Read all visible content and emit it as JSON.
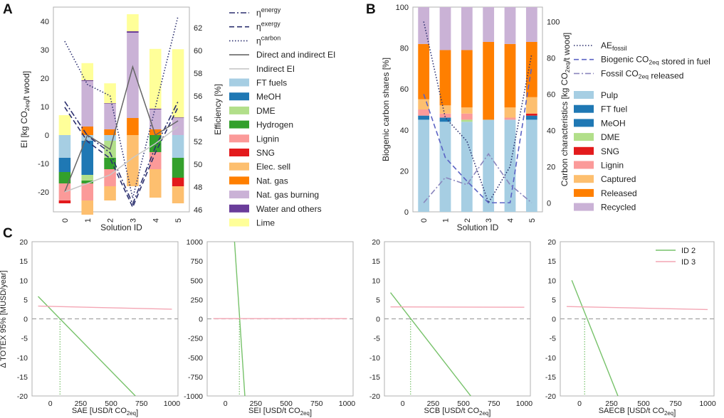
{
  "figure": {
    "background": "#ffffff"
  },
  "colors": {
    "FT fuels": "#a6cee3",
    "MeOH": "#1f78b4",
    "DME": "#b2df8a",
    "Hydrogen": "#33a02c",
    "Lignin": "#fb9a99",
    "SNG": "#e31a1c",
    "Elec. sell": "#fdbf6f",
    "Nat. gas": "#ff7f00",
    "Nat. gas burning": "#cab2d6",
    "Water and others": "#6a3d9a",
    "Lime": "#ffff99",
    "Pulp": "#a6cee3",
    "FT fuel": "#1f78b4",
    "Captured": "#fdbf6f",
    "Released": "#ff7f00",
    "Recycled": "#cab2d6",
    "eff_line": "#2b2f6e",
    "direct_ei": "#666666",
    "indirect_ei": "#c8c8c8",
    "id2": "#77c26a",
    "id3": "#f4a6b4",
    "zero": "#a3a3a3",
    "frame": "#b0b0b0"
  },
  "chart_data": [
    {
      "panel": "A",
      "type": "bar",
      "stacked": true,
      "xlabel": "Solution ID",
      "ylabel_left": "EI [kg CO₂eq/t  wood]",
      "ylabel_right": "Efficiency [%]",
      "categories": [
        "0",
        "1",
        "2",
        "3",
        "4",
        "5"
      ],
      "ylim": [
        -27,
        45
      ],
      "yticks": [
        -20,
        -10,
        0,
        10,
        20,
        30,
        40
      ],
      "y2lim": [
        45.8,
        63.8
      ],
      "y2ticks": [
        46,
        48,
        50,
        52,
        54,
        56,
        58,
        60,
        62
      ],
      "series": [
        {
          "name": "FT fuels",
          "values": [
            -8,
            -2,
            -2,
            0,
            0,
            -8
          ]
        },
        {
          "name": "MeOH",
          "values": [
            -5,
            -12,
            0,
            0,
            0,
            0
          ]
        },
        {
          "name": "DME",
          "values": [
            0,
            -2,
            -6,
            0,
            0,
            0
          ]
        },
        {
          "name": "Hydrogen",
          "values": [
            -4,
            -1,
            -4,
            0,
            -6,
            -7
          ]
        },
        {
          "name": "Lignin",
          "values": [
            -6,
            -6,
            -6,
            0,
            -6,
            0
          ]
        },
        {
          "name": "SNG",
          "values": [
            -1,
            0,
            0,
            0,
            0,
            -3
          ]
        },
        {
          "name": "Elec. sell",
          "values": [
            0,
            -5,
            -5,
            -18,
            -10,
            -6
          ]
        },
        {
          "name": "Nat. gas",
          "values": [
            0,
            3,
            2,
            6,
            2,
            0
          ]
        },
        {
          "name": "Nat. gas burning",
          "values": [
            0,
            16,
            9,
            30,
            7,
            6
          ]
        },
        {
          "name": "Water and others",
          "values": [
            0,
            0.3,
            0.2,
            0.5,
            0.3,
            0.2
          ]
        },
        {
          "name": "Lime",
          "values": [
            7,
            6,
            7,
            6,
            21,
            24
          ]
        }
      ],
      "lines": [
        {
          "name": "η energy",
          "axis": "right",
          "style": "dashdot",
          "values": [
            55.5,
            52.5,
            51.0,
            46.5,
            51.5,
            55.5
          ]
        },
        {
          "name": "η exergy",
          "axis": "right",
          "style": "dashed",
          "values": [
            55.0,
            52.0,
            50.5,
            46.2,
            51.0,
            55.0
          ]
        },
        {
          "name": "η carbon",
          "axis": "right",
          "style": "dotted",
          "values": [
            60.8,
            57.0,
            56.0,
            47.0,
            55.0,
            63.0
          ]
        },
        {
          "name": "Direct and indirect EI",
          "axis": "left",
          "style": "solid",
          "values": [
            -20,
            0,
            -5,
            24,
            0,
            5
          ]
        },
        {
          "name": "Indirect EI",
          "axis": "left",
          "style": "solid",
          "values": [
            -20,
            -17,
            -14,
            -8,
            -3,
            3
          ]
        }
      ],
      "legend": {
        "lines": [
          {
            "label": "η",
            "sup": "energy"
          },
          {
            "label": "η",
            "sup": "exergy"
          },
          {
            "label": "η",
            "sup": "carbon"
          },
          {
            "label": "Direct and indirect EI",
            "sup": ""
          },
          {
            "label": "Indirect EI",
            "sup": ""
          }
        ],
        "patches": [
          "FT fuels",
          "MeOH",
          "DME",
          "Hydrogen",
          "Lignin",
          "SNG",
          "Elec. sell",
          "Nat. gas",
          "Nat. gas burning",
          "Water and others",
          "Lime"
        ]
      }
    },
    {
      "panel": "B",
      "type": "bar",
      "stacked": true,
      "xlabel": "Solution ID",
      "ylabel_left": "Biogenic carbon shares [%]",
      "ylabel_right": "Carbon characteristics [kg CO₂eq/t wood]",
      "categories": [
        "0",
        "1",
        "2",
        "3",
        "4",
        "5"
      ],
      "ylim": [
        0,
        100
      ],
      "yticks": [
        0,
        20,
        40,
        60,
        80,
        100
      ],
      "y2lim": [
        -5,
        108
      ],
      "y2ticks": [
        0,
        20,
        40,
        60,
        80,
        100
      ],
      "series": [
        {
          "name": "Pulp",
          "values": [
            45,
            44,
            44,
            45,
            45,
            45
          ]
        },
        {
          "name": "FT fuel",
          "values": [
            2,
            0,
            0,
            0,
            0,
            2
          ]
        },
        {
          "name": "MeOH",
          "values": [
            0,
            2,
            0,
            0,
            0,
            0
          ]
        },
        {
          "name": "DME",
          "values": [
            0,
            0,
            1,
            0,
            0,
            0
          ]
        },
        {
          "name": "SNG",
          "values": [
            0,
            0,
            0,
            0,
            0,
            1
          ]
        },
        {
          "name": "Lignin",
          "values": [
            3,
            2,
            3,
            0,
            1,
            0
          ]
        },
        {
          "name": "Captured",
          "values": [
            5,
            4,
            3,
            0,
            5,
            8
          ]
        },
        {
          "name": "Released",
          "values": [
            27,
            27,
            28,
            38,
            31,
            27
          ]
        },
        {
          "name": "Recycled",
          "values": [
            18,
            21,
            21,
            17,
            18,
            17
          ]
        }
      ],
      "lines": [
        {
          "name": "AE fossil",
          "axis": "right",
          "style": "dotted",
          "values": [
            100,
            47,
            34,
            0,
            20,
            82
          ]
        },
        {
          "name": "Biogenic CO₂eq stored in fuel",
          "axis": "right",
          "style": "dashed",
          "values": [
            60,
            25,
            12,
            0,
            0,
            75
          ]
        },
        {
          "name": "Fossil CO₂eq released",
          "axis": "right",
          "style": "dashdot",
          "values": [
            0,
            14,
            10,
            27,
            10,
            0
          ]
        }
      ],
      "legend": {
        "lines": [
          {
            "label": "AE",
            "sub": "fossil"
          },
          {
            "label": "Biogenic CO₂eq stored in fuel",
            "sub": ""
          },
          {
            "label": "Fossil CO₂eq released",
            "sub": ""
          }
        ],
        "patches": [
          "Pulp",
          "FT fuel",
          "MeOH",
          "DME",
          "SNG",
          "Lignin",
          "Captured",
          "Released",
          "Recycled"
        ]
      }
    },
    {
      "panel": "C",
      "type": "line",
      "ylabel": "Δ TOTEX 95% [MUSD/year]",
      "subplots": [
        {
          "xlabel": "SAE [USD/t CO₂eq]",
          "xlim": [
            -150,
            1050
          ],
          "xticks": [
            0,
            250,
            500,
            750,
            1000
          ],
          "ylim": [
            -20,
            20
          ],
          "yticks": [
            -20,
            -15,
            -10,
            -5,
            0,
            5,
            10,
            15,
            20
          ],
          "series": [
            {
              "name": "ID 2",
              "x": [
                -100,
                700
              ],
              "y": [
                5.8,
                -20
              ]
            },
            {
              "name": "ID 3",
              "x": [
                -100,
                1000
              ],
              "y": [
                3.3,
                2.5
              ]
            }
          ],
          "crossing_x": 80
        },
        {
          "xlabel": "SEI [USD/t CO₂eq]",
          "xlim": [
            -150,
            1050
          ],
          "xticks": [
            0,
            250,
            500,
            750,
            1000
          ],
          "ylim": [
            -1000,
            1000
          ],
          "yticks": [
            -1000,
            -750,
            -500,
            -250,
            0,
            250,
            500,
            750,
            1000
          ],
          "series": [
            {
              "name": "ID 2",
              "x": [
                75,
                160
              ],
              "y": [
                1000,
                -1000
              ]
            },
            {
              "name": "ID 3",
              "x": [
                -100,
                1000
              ],
              "y": [
                3,
                2.5
              ]
            }
          ],
          "crossing_x": 115
        },
        {
          "xlabel": "SCB [USD/t CO₂eq]",
          "xlim": [
            -150,
            1050
          ],
          "xticks": [
            0,
            250,
            500,
            750,
            1000
          ],
          "ylim": [
            -20,
            20
          ],
          "yticks": [
            -20,
            -15,
            -10,
            -5,
            0,
            5,
            10,
            15,
            20
          ],
          "series": [
            {
              "name": "ID 2",
              "x": [
                -100,
                560
              ],
              "y": [
                6.8,
                -20
              ]
            },
            {
              "name": "ID 3",
              "x": [
                -100,
                1000
              ],
              "y": [
                3.1,
                3.0
              ]
            }
          ],
          "crossing_x": 65
        },
        {
          "xlabel": "SAECB [USD/t CO₂eq]",
          "xlim": [
            -150,
            1050
          ],
          "xticks": [
            0,
            250,
            500,
            750,
            1000
          ],
          "ylim": [
            -20,
            20
          ],
          "yticks": [
            -20,
            -15,
            -10,
            -5,
            0,
            5,
            10,
            15,
            20
          ],
          "series": [
            {
              "name": "ID 2",
              "x": [
                -60,
                300
              ],
              "y": [
                10,
                -20
              ]
            },
            {
              "name": "ID 3",
              "x": [
                -100,
                1000
              ],
              "y": [
                3.2,
                2.4
              ]
            }
          ],
          "crossing_x": 40,
          "legend": [
            "ID 2",
            "ID 3"
          ]
        }
      ]
    }
  ],
  "panel_labels": [
    "A",
    "B",
    "C"
  ]
}
